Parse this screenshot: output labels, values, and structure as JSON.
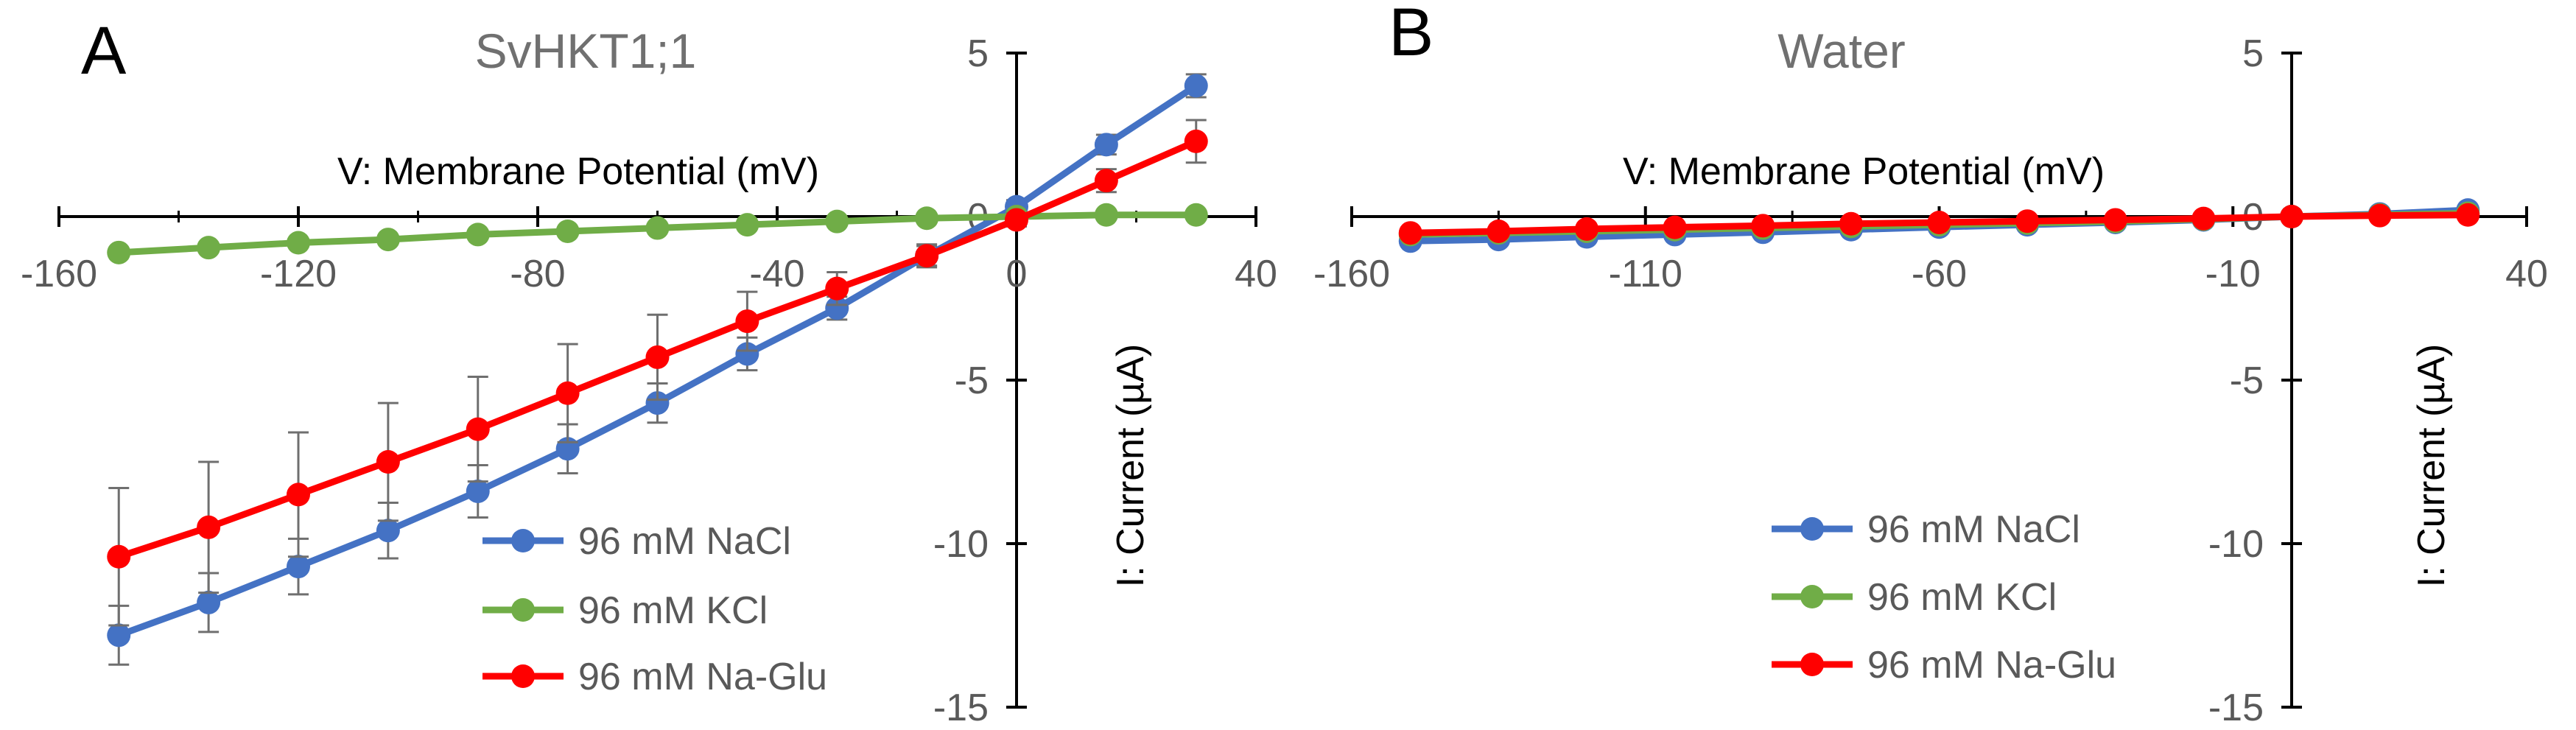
{
  "colors": {
    "nacl": "#4472C4",
    "kcl": "#70AD47",
    "naglu": "#FF0000",
    "axis": "#000000",
    "error_bar": "#6f6f6f",
    "tick_text": "#595959",
    "title_text": "#707070"
  },
  "chart_data": [
    {
      "type": "line",
      "panel_label": "A",
      "title": "SvHKT1;1",
      "xlabel": "V: Membrane Potential (mV)",
      "ylabel": "I: Current (µA)",
      "xlim": [
        -160,
        40
      ],
      "ylim": [
        -15,
        5
      ],
      "xticks": [
        -160,
        -120,
        -80,
        -40,
        0,
        40
      ],
      "yticks": [
        5,
        0,
        -5,
        -10,
        -15
      ],
      "x": [
        -150,
        -135,
        -120,
        -105,
        -90,
        -75,
        -60,
        -45,
        -30,
        -15,
        0,
        15,
        30
      ],
      "series": [
        {
          "name": "96 mM NaCl",
          "color_key": "nacl",
          "values": [
            -12.8,
            -11.8,
            -10.7,
            -9.6,
            -8.4,
            -7.1,
            -5.7,
            -4.2,
            -2.8,
            -1.2,
            0.3,
            2.2,
            4.0
          ],
          "errors": [
            0.9,
            0.9,
            0.85,
            0.85,
            0.8,
            0.75,
            0.6,
            0.5,
            0.35,
            0.3,
            0.2,
            0.3,
            0.35
          ]
        },
        {
          "name": "96 mM KCl",
          "color_key": "kcl",
          "values": [
            -1.1,
            -0.95,
            -0.8,
            -0.7,
            -0.55,
            -0.45,
            -0.35,
            -0.25,
            -0.15,
            -0.05,
            0.0,
            0.05,
            0.05
          ],
          "errors": [
            0.05,
            0.05,
            0.05,
            0.05,
            0.05,
            0.05,
            0.05,
            0.05,
            0.05,
            0.05,
            0.05,
            0.05,
            0.05
          ]
        },
        {
          "name": "96 mM Na-Glu",
          "color_key": "naglu",
          "values": [
            -10.4,
            -9.5,
            -8.5,
            -7.5,
            -6.5,
            -5.4,
            -4.3,
            -3.2,
            -2.2,
            -1.2,
            -0.1,
            1.1,
            2.3
          ],
          "errors": [
            2.1,
            2.0,
            1.9,
            1.8,
            1.6,
            1.5,
            1.3,
            0.9,
            0.5,
            0.35,
            0.2,
            0.35,
            0.65
          ]
        }
      ]
    },
    {
      "type": "line",
      "panel_label": "B",
      "title": "Water",
      "xlabel": "V: Membrane Potential (mV)",
      "ylabel": "I: Current (µA)",
      "xlim": [
        -160,
        40
      ],
      "ylim": [
        -15,
        5
      ],
      "xticks": [
        -160,
        -110,
        -60,
        -10,
        40
      ],
      "yticks": [
        5,
        0,
        -5,
        -10,
        -15
      ],
      "x": [
        -150,
        -135,
        -120,
        -105,
        -90,
        -75,
        -60,
        -45,
        -30,
        -15,
        0,
        15,
        30
      ],
      "series": [
        {
          "name": "96 mM NaCl",
          "color_key": "nacl",
          "values": [
            -0.75,
            -0.7,
            -0.62,
            -0.55,
            -0.48,
            -0.4,
            -0.32,
            -0.25,
            -0.18,
            -0.1,
            0.0,
            0.08,
            0.2
          ],
          "errors": [
            0.05,
            0.05,
            0.05,
            0.05,
            0.05,
            0.05,
            0.05,
            0.05,
            0.05,
            0.05,
            0.05,
            0.05,
            0.05
          ]
        },
        {
          "name": "96 mM KCl",
          "color_key": "kcl",
          "values": [
            -0.55,
            -0.5,
            -0.45,
            -0.4,
            -0.35,
            -0.3,
            -0.25,
            -0.2,
            -0.15,
            -0.08,
            0.0,
            0.05,
            0.1
          ],
          "errors": [
            0.05,
            0.05,
            0.05,
            0.05,
            0.05,
            0.05,
            0.05,
            0.05,
            0.05,
            0.05,
            0.05,
            0.05,
            0.05
          ]
        },
        {
          "name": "96 mM Na-Glu",
          "color_key": "naglu",
          "values": [
            -0.5,
            -0.45,
            -0.38,
            -0.33,
            -0.28,
            -0.22,
            -0.18,
            -0.14,
            -0.1,
            -0.06,
            0.0,
            0.03,
            0.05
          ],
          "errors": [
            0.05,
            0.05,
            0.05,
            0.05,
            0.05,
            0.05,
            0.05,
            0.05,
            0.05,
            0.05,
            0.05,
            0.05,
            0.05
          ]
        }
      ]
    }
  ]
}
